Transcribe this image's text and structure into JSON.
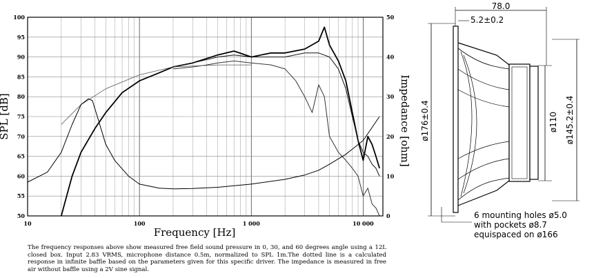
{
  "chart_data": {
    "type": "line",
    "xlabel": "Frequency [Hz]",
    "ylabel": "SPL [dB]",
    "y2label": "Impedance [ohm]",
    "xscale": "log",
    "xlim": [
      10,
      15000
    ],
    "ylim": [
      50,
      100
    ],
    "y2lim": [
      0,
      50
    ],
    "grid": true,
    "x_ticks": [
      "10",
      "100",
      "1 000",
      "10 000"
    ],
    "y_ticks": [
      "50",
      "55",
      "60",
      "65",
      "70",
      "75",
      "80",
      "85",
      "90",
      "95",
      "100"
    ],
    "y2_ticks": [
      "0",
      "10",
      "20",
      "30",
      "40",
      "50"
    ],
    "series": [
      {
        "key": "spl_0deg",
        "axis": "left",
        "color": "#000000",
        "width": 1.8,
        "x": [
          20,
          25,
          30,
          40,
          50,
          70,
          100,
          150,
          200,
          300,
          500,
          700,
          1000,
          1500,
          2000,
          3000,
          4000,
          4500,
          5000,
          6000,
          7000,
          8000,
          9000,
          10000,
          11000,
          12000,
          13000,
          14000
        ],
        "y": [
          50,
          60,
          66,
          72,
          76,
          81,
          84,
          86,
          87.5,
          88.5,
          90.5,
          91.5,
          90,
          91,
          91,
          92,
          94,
          97.5,
          93,
          89,
          84,
          76,
          69,
          64,
          70,
          68,
          65,
          62
        ]
      },
      {
        "key": "spl_30deg",
        "axis": "left",
        "color": "#111111",
        "width": 1.0,
        "x": [
          200,
          300,
          500,
          700,
          1000,
          1500,
          2000,
          3000,
          4000,
          5000,
          6000,
          7000,
          8000,
          9000,
          10000,
          11000,
          12000,
          13000,
          14000
        ],
        "y": [
          87.5,
          88.5,
          90,
          90.5,
          90,
          90,
          90,
          91,
          91,
          90,
          87,
          82,
          75,
          69,
          66,
          65,
          63,
          62,
          60
        ]
      },
      {
        "key": "spl_60deg",
        "axis": "left",
        "color": "#333333",
        "width": 1.0,
        "x": [
          200,
          300,
          400,
          500,
          700,
          1000,
          1500,
          2000,
          2500,
          3000,
          3500,
          4000,
          4500,
          5000,
          6000,
          7000,
          8000,
          9000,
          10000,
          11000,
          12000,
          13000,
          14000
        ],
        "y": [
          87,
          87.5,
          88,
          88.5,
          89,
          88.5,
          88,
          87,
          84,
          80,
          76,
          83,
          80,
          70,
          66,
          64,
          62,
          60,
          55,
          57,
          53,
          52,
          50
        ]
      },
      {
        "key": "spl_calculated",
        "axis": "left",
        "color": "#555555",
        "width": 0.8,
        "x": [
          20,
          30,
          50,
          100,
          200,
          500,
          1000
        ],
        "y": [
          73,
          78,
          82,
          85.5,
          87.5,
          88,
          88
        ]
      },
      {
        "key": "impedance",
        "axis": "right",
        "color": "#000000",
        "width": 1.0,
        "x": [
          10,
          15,
          20,
          25,
          30,
          35,
          38,
          42,
          50,
          60,
          80,
          100,
          150,
          200,
          300,
          500,
          1000,
          2000,
          3000,
          4000,
          5000,
          7000,
          10000,
          14000
        ],
        "y": [
          8.5,
          11,
          16,
          23,
          28,
          29.5,
          29,
          25,
          18,
          14,
          10,
          8,
          7,
          6.8,
          6.9,
          7.2,
          8,
          9.2,
          10.3,
          11.5,
          13,
          15.5,
          19,
          25
        ]
      }
    ]
  },
  "dimensions": {
    "overall_depth": "78.0",
    "flange_thickness": "5.2±0.2",
    "outer_diameter": "ø176±0.4",
    "magnet_diameter": "ø110",
    "cutout_diameter": "ø145.2±0.4",
    "mounting_note": [
      "6 mounting holes ø5.0",
      "with pockets ø8.7",
      "equispaced on ø166"
    ]
  },
  "caption": "The frequency responses above show measured free field sound pressure in 0, 30, and 60 degrees angle using a 12L closed box. Input 2.83 VRMS, microphone distance 0.5m, normalized to SPL 1m.The dotted line is a calculated response in infinite baffle based on the parameters given for this specific driver. The impedance is measured in free air without baffle using a 2V sine signal."
}
